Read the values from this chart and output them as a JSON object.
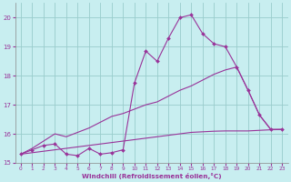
{
  "xlabel": "Windchill (Refroidissement éolien,°C)",
  "background_color": "#c8eef0",
  "grid_color": "#99cccc",
  "line_color": "#993399",
  "x_values": [
    0,
    1,
    2,
    3,
    4,
    5,
    6,
    7,
    8,
    9,
    10,
    11,
    12,
    13,
    14,
    15,
    16,
    17,
    18,
    19,
    20,
    21,
    22,
    23
  ],
  "y_zigzag": [
    15.3,
    15.45,
    15.6,
    15.65,
    15.3,
    15.25,
    15.5,
    15.3,
    15.35,
    15.45,
    17.75,
    18.85,
    18.5,
    19.3,
    20.0,
    20.1,
    19.45,
    19.1,
    19.0,
    18.3,
    17.5,
    16.65,
    16.15,
    16.15
  ],
  "y_upper": [
    15.3,
    15.5,
    15.75,
    16.0,
    15.9,
    16.05,
    16.2,
    16.4,
    16.6,
    16.7,
    16.85,
    17.0,
    17.1,
    17.3,
    17.5,
    17.65,
    17.85,
    18.05,
    18.2,
    18.3,
    17.5,
    16.65,
    16.15,
    16.15
  ],
  "y_lower": [
    15.3,
    15.35,
    15.4,
    15.45,
    15.5,
    15.55,
    15.6,
    15.65,
    15.7,
    15.75,
    15.8,
    15.85,
    15.9,
    15.95,
    16.0,
    16.05,
    16.07,
    16.09,
    16.1,
    16.1,
    16.1,
    16.12,
    16.14,
    16.15
  ],
  "ylim": [
    15,
    20.5
  ],
  "xlim": [
    -0.5,
    23.5
  ]
}
